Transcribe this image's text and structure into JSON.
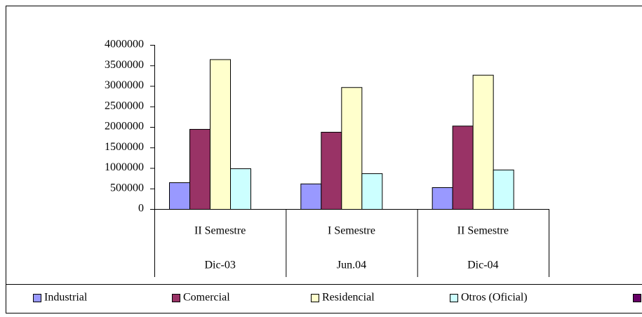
{
  "chart_data": {
    "type": "bar",
    "categories": [
      "II Semestre",
      "I Semestre",
      "II Semestre"
    ],
    "category_groups": [
      "Dic-03",
      "Jun.04",
      "Dic-04"
    ],
    "series": [
      {
        "name": "Industrial",
        "color": "#9999ff",
        "values": [
          650000,
          620000,
          530000
        ]
      },
      {
        "name": "Comercial",
        "color": "#993366",
        "values": [
          1950000,
          1880000,
          2030000
        ]
      },
      {
        "name": "Residencial",
        "color": "#ffffcc",
        "values": [
          3650000,
          2970000,
          3270000
        ]
      },
      {
        "name": "Otros (Oficial)",
        "color": "#ccffff",
        "values": [
          990000,
          870000,
          960000
        ]
      }
    ],
    "ylim": [
      0,
      4000000
    ],
    "yticks": [
      0,
      500000,
      1000000,
      1500000,
      2000000,
      2500000,
      3000000,
      3500000,
      4000000
    ],
    "legend": "bottom"
  }
}
